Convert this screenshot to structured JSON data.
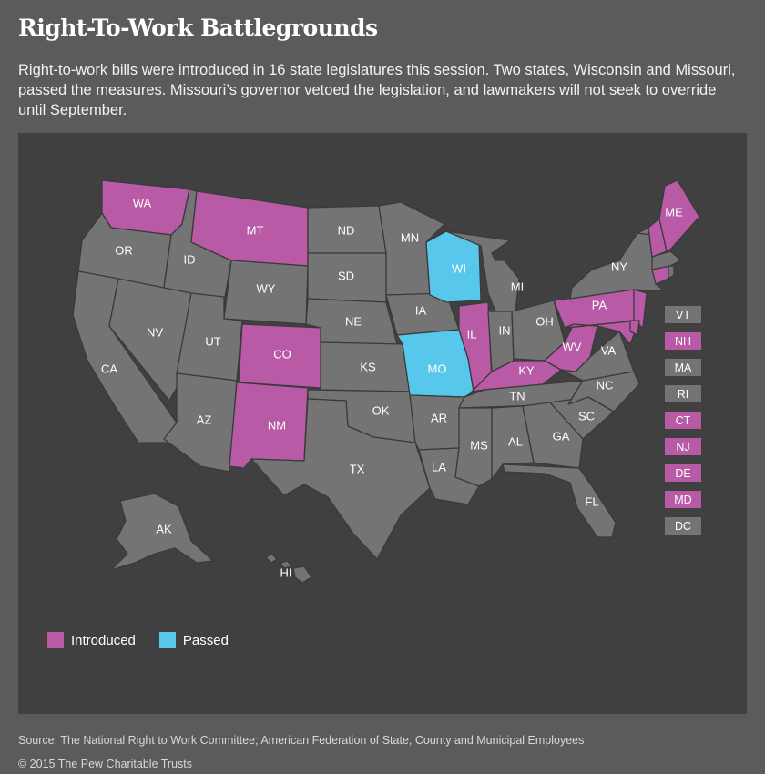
{
  "title": "Right-To-Work Battlegrounds",
  "subtitle": "Right-to-work bills were introduced in 16 state legislatures this session. Two states, Wisconsin and Missouri, passed the measures. Missouri’s governor vetoed the legislation, and lawmakers will not seek to override until September.",
  "colors": {
    "introduced": "#b85aa5",
    "passed": "#57c8ec",
    "none": "#747474",
    "background": "#5b5b5b",
    "panel": "#404040"
  },
  "legend": {
    "introduced_label": "Introduced",
    "passed_label": "Passed"
  },
  "states": [
    {
      "code": "WA",
      "status": "introduced"
    },
    {
      "code": "OR",
      "status": "none"
    },
    {
      "code": "CA",
      "status": "none"
    },
    {
      "code": "ID",
      "status": "none"
    },
    {
      "code": "NV",
      "status": "none"
    },
    {
      "code": "MT",
      "status": "introduced"
    },
    {
      "code": "WY",
      "status": "none"
    },
    {
      "code": "UT",
      "status": "none"
    },
    {
      "code": "AZ",
      "status": "none"
    },
    {
      "code": "CO",
      "status": "introduced"
    },
    {
      "code": "NM",
      "status": "introduced"
    },
    {
      "code": "ND",
      "status": "none"
    },
    {
      "code": "SD",
      "status": "none"
    },
    {
      "code": "NE",
      "status": "none"
    },
    {
      "code": "KS",
      "status": "none"
    },
    {
      "code": "OK",
      "status": "none"
    },
    {
      "code": "TX",
      "status": "none"
    },
    {
      "code": "MN",
      "status": "none"
    },
    {
      "code": "IA",
      "status": "none"
    },
    {
      "code": "MO",
      "status": "passed"
    },
    {
      "code": "AR",
      "status": "none"
    },
    {
      "code": "LA",
      "status": "none"
    },
    {
      "code": "WI",
      "status": "passed"
    },
    {
      "code": "IL",
      "status": "introduced"
    },
    {
      "code": "MI",
      "status": "none"
    },
    {
      "code": "IN",
      "status": "none"
    },
    {
      "code": "OH",
      "status": "none"
    },
    {
      "code": "KY",
      "status": "introduced"
    },
    {
      "code": "TN",
      "status": "none"
    },
    {
      "code": "MS",
      "status": "none"
    },
    {
      "code": "AL",
      "status": "none"
    },
    {
      "code": "GA",
      "status": "none"
    },
    {
      "code": "FL",
      "status": "none"
    },
    {
      "code": "SC",
      "status": "none"
    },
    {
      "code": "NC",
      "status": "none"
    },
    {
      "code": "VA",
      "status": "none"
    },
    {
      "code": "WV",
      "status": "introduced"
    },
    {
      "code": "PA",
      "status": "introduced"
    },
    {
      "code": "NY",
      "status": "none"
    },
    {
      "code": "ME",
      "status": "introduced"
    },
    {
      "code": "AK",
      "status": "none"
    },
    {
      "code": "HI",
      "status": "none"
    }
  ],
  "small_states": [
    {
      "code": "VT",
      "status": "none"
    },
    {
      "code": "NH",
      "status": "introduced"
    },
    {
      "code": "MA",
      "status": "none"
    },
    {
      "code": "RI",
      "status": "none"
    },
    {
      "code": "CT",
      "status": "introduced"
    },
    {
      "code": "NJ",
      "status": "introduced"
    },
    {
      "code": "DE",
      "status": "introduced"
    },
    {
      "code": "MD",
      "status": "introduced"
    },
    {
      "code": "DC",
      "status": "none"
    }
  ],
  "source": "Source: The National Right to Work Committee; American Federation of State, County and Municipal Employees",
  "copyright": "© 2015 The Pew Charitable Trusts"
}
